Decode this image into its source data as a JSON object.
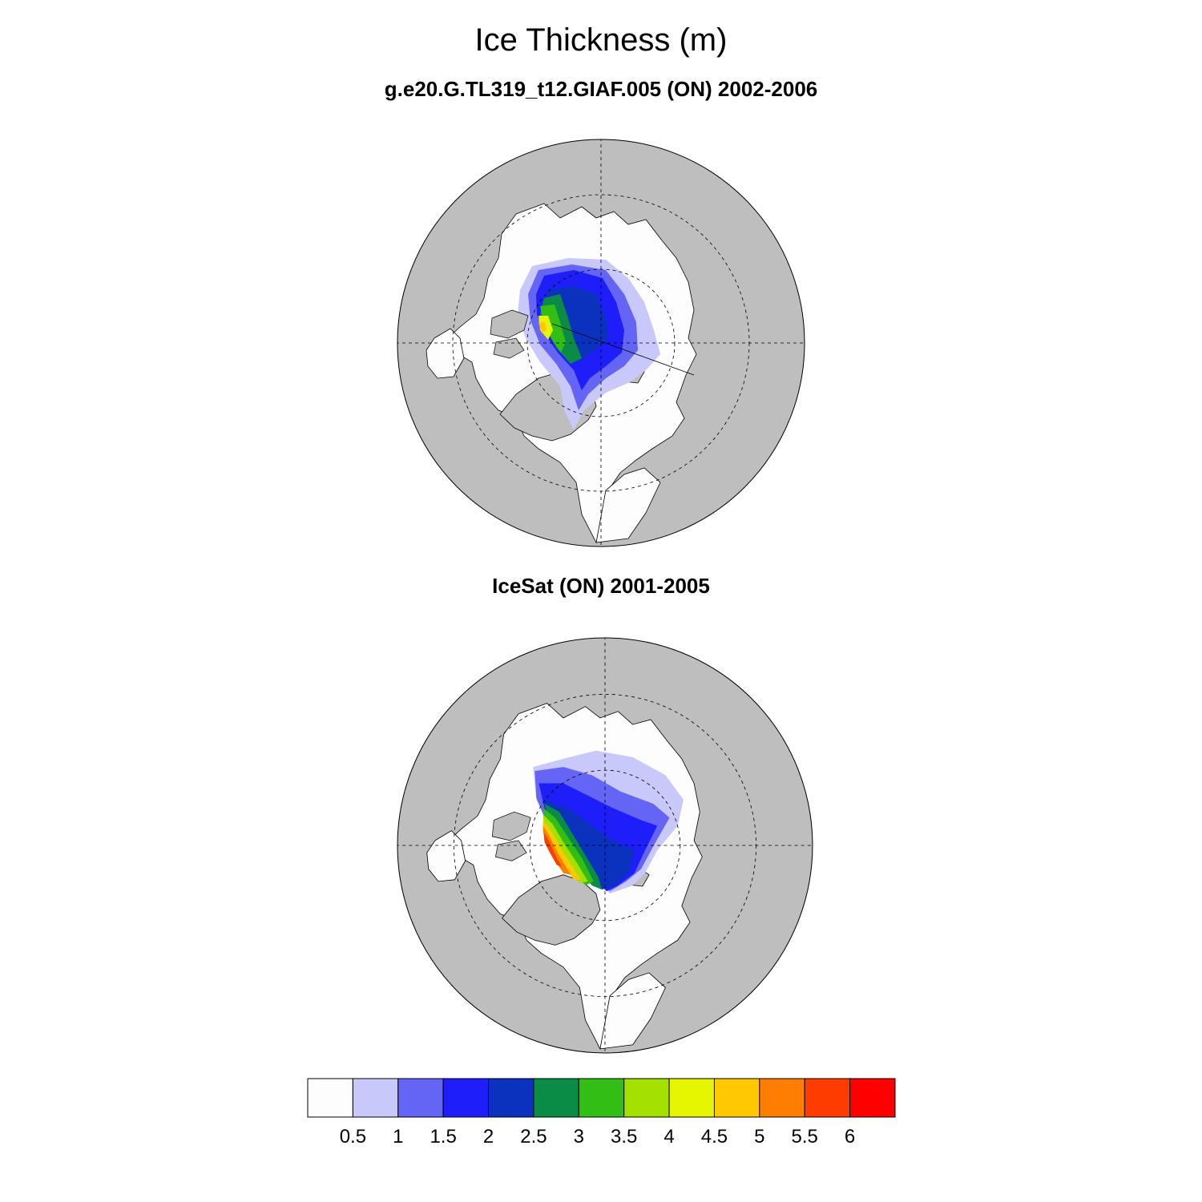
{
  "main_title": "Ice Thickness (m)",
  "panels": [
    {
      "title": "g.e20.G.TL319_t12.GIAF.005 (ON) 2002-2006"
    },
    {
      "title": "IceSat (ON) 2001-2005"
    }
  ],
  "colors": {
    "land": "#bebebe",
    "open_water": "#fdfdfd",
    "coastline": "#000000",
    "gridlines": "#000000"
  },
  "projection": "north-polar-stereographic",
  "gridlines": "dashed",
  "colorbar": {
    "levels": [
      "0.5",
      "1",
      "1.5",
      "2",
      "2.5",
      "3",
      "3.5",
      "4",
      "4.5",
      "5",
      "5.5",
      "6"
    ],
    "units": "m",
    "colors": [
      "#fdfdfd",
      "#c8c8fa",
      "#6464f5",
      "#1e1efa",
      "#0a32be",
      "#0a8c46",
      "#32be14",
      "#a5e100",
      "#e6f500",
      "#ffc800",
      "#ff7d00",
      "#ff3c00",
      "#ff0000"
    ]
  }
}
